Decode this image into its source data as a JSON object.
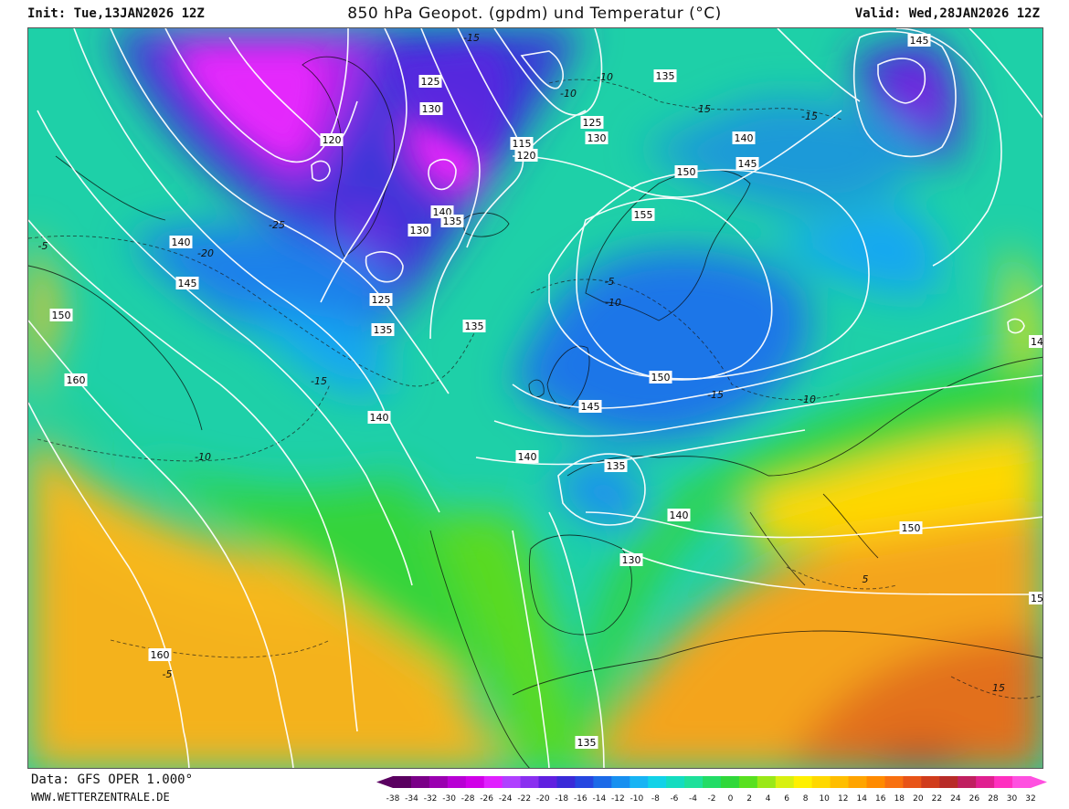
{
  "header": {
    "init": "Init: Tue,13JAN2026 12Z",
    "title": "850 hPa Geopot. (gpdm) und Temperatur (°C)",
    "valid": "Valid: Wed,28JAN2026 12Z"
  },
  "footer": {
    "data_source": "Data: GFS OPER 1.000°",
    "website": "WWW.WETTERZENTRALE.DE"
  },
  "legend": {
    "unit": "°C",
    "labels": [
      "-38",
      "-34",
      "-32",
      "-30",
      "-28",
      "-26",
      "-24",
      "-22",
      "-20",
      "-18",
      "-16",
      "-14",
      "-12",
      "-10",
      "-8",
      "-6",
      "-4",
      "-2",
      "0",
      "2",
      "4",
      "6",
      "8",
      "10",
      "12",
      "14",
      "16",
      "18",
      "20",
      "22",
      "24",
      "26",
      "28",
      "30",
      "32"
    ],
    "colors": [
      "#5a0060",
      "#7a0088",
      "#9a00b0",
      "#b800d4",
      "#d000e8",
      "#e020ff",
      "#b040ff",
      "#8a30f0",
      "#6020e0",
      "#3a2ad8",
      "#2646e0",
      "#1c6ae8",
      "#1890f0",
      "#18b4f4",
      "#12d2e8",
      "#14dcc0",
      "#1ee09a",
      "#22dc66",
      "#30d83a",
      "#58e020",
      "#9ae818",
      "#d8f010",
      "#fff000",
      "#ffd800",
      "#ffbe00",
      "#ffa400",
      "#ff8a00",
      "#f87010",
      "#e85418",
      "#d03c1c",
      "#b82c28",
      "#c02060",
      "#e02090",
      "#ff30c0",
      "#ff50e0"
    ]
  },
  "map": {
    "geopotential_labels": [
      {
        "text": "145",
        "gx": 1005,
        "gy": 43
      },
      {
        "text": "125",
        "gx": 470,
        "gy": 88
      },
      {
        "text": "135",
        "gx": 727,
        "gy": 82
      },
      {
        "text": "130",
        "gx": 471,
        "gy": 118
      },
      {
        "text": "125",
        "gx": 647,
        "gy": 133
      },
      {
        "text": "130",
        "gx": 652,
        "gy": 150
      },
      {
        "text": "120",
        "gx": 362,
        "gy": 152
      },
      {
        "text": "115",
        "gx": 570,
        "gy": 156
      },
      {
        "text": "120",
        "gx": 575,
        "gy": 169
      },
      {
        "text": "140",
        "gx": 813,
        "gy": 150
      },
      {
        "text": "145",
        "gx": 817,
        "gy": 178
      },
      {
        "text": "150",
        "gx": 750,
        "gy": 187
      },
      {
        "text": "140",
        "gx": 483,
        "gy": 231
      },
      {
        "text": "135",
        "gx": 494,
        "gy": 241
      },
      {
        "text": "130",
        "gx": 458,
        "gy": 251
      },
      {
        "text": "155",
        "gx": 703,
        "gy": 234
      },
      {
        "text": "140",
        "gx": 197,
        "gy": 264
      },
      {
        "text": "145",
        "gx": 204,
        "gy": 309
      },
      {
        "text": "125",
        "gx": 416,
        "gy": 327
      },
      {
        "text": "150",
        "gx": 66,
        "gy": 344
      },
      {
        "text": "135",
        "gx": 418,
        "gy": 360
      },
      {
        "text": "135",
        "gx": 518,
        "gy": 356
      },
      {
        "text": "160",
        "gx": 82,
        "gy": 415
      },
      {
        "text": "150",
        "gx": 722,
        "gy": 412
      },
      {
        "text": "145",
        "gx": 645,
        "gy": 444
      },
      {
        "text": "140",
        "gx": 414,
        "gy": 456
      },
      {
        "text": "140",
        "gx": 576,
        "gy": 499
      },
      {
        "text": "135",
        "gx": 673,
        "gy": 509
      },
      {
        "text": "140",
        "gx": 742,
        "gy": 563
      },
      {
        "text": "150",
        "gx": 996,
        "gy": 577
      },
      {
        "text": "130",
        "gx": 690,
        "gy": 612
      },
      {
        "text": "160",
        "gx": 174,
        "gy": 716
      },
      {
        "text": "135",
        "gx": 641,
        "gy": 812
      },
      {
        "text": "14",
        "gx": 1134,
        "gy": 373
      },
      {
        "text": "15",
        "gx": 1134,
        "gy": 654
      }
    ],
    "temperature_labels": [
      {
        "text": "-15",
        "gx": 515,
        "gy": 40
      },
      {
        "text": "-10",
        "gx": 661,
        "gy": 83
      },
      {
        "text": "-10",
        "gx": 621,
        "gy": 101
      },
      {
        "text": "-15",
        "gx": 768,
        "gy": 118
      },
      {
        "text": "-15",
        "gx": 885,
        "gy": 126
      },
      {
        "text": "-25",
        "gx": 302,
        "gy": 245
      },
      {
        "text": "-20",
        "gx": 224,
        "gy": 276
      },
      {
        "text": "-5",
        "gx": 46,
        "gy": 268
      },
      {
        "text": "-5",
        "gx": 666,
        "gy": 307
      },
      {
        "text": "-10",
        "gx": 670,
        "gy": 330
      },
      {
        "text": "-15",
        "gx": 348,
        "gy": 416
      },
      {
        "text": "-15",
        "gx": 782,
        "gy": 431
      },
      {
        "text": "-10",
        "gx": 883,
        "gy": 436
      },
      {
        "text": "-10",
        "gx": 221,
        "gy": 499
      },
      {
        "text": "-5",
        "gx": 182,
        "gy": 737
      },
      {
        "text": "5",
        "gx": 946,
        "gy": 633
      },
      {
        "text": "15",
        "gx": 1092,
        "gy": 752
      }
    ]
  }
}
